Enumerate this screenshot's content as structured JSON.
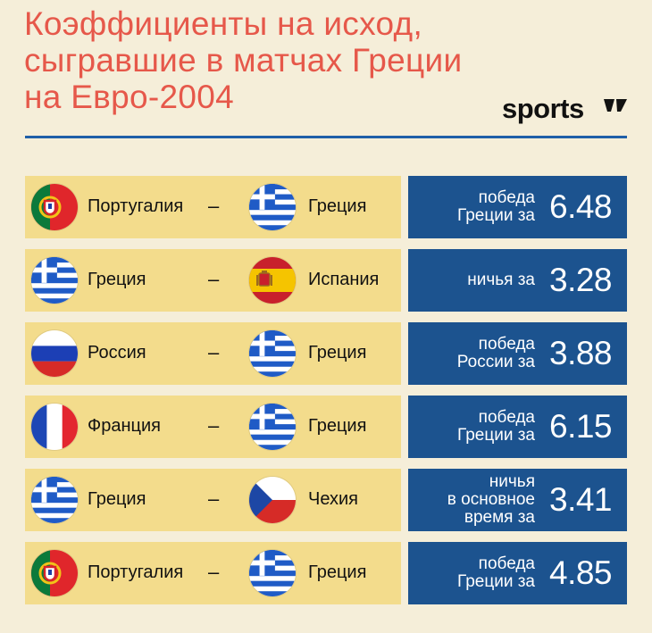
{
  "title": {
    "line1": "Коэффициенты на исход,",
    "line2": "сыгравшие в матчах Греции",
    "line3": "на Евро-2004"
  },
  "logo": {
    "text": "sports"
  },
  "colors": {
    "title": "#e6584a",
    "rule": "#1f5fa8",
    "left_panel": "#f3dc8c",
    "right_panel": "#1c538f",
    "background": "#f5eed9"
  },
  "separator": "–",
  "matches": [
    {
      "team1": "Португалия",
      "flag1": "portugal-flag-icon",
      "team2": "Греция",
      "flag2": "greece-flag-icon",
      "outcome_lines": [
        "победа",
        "Греции за"
      ],
      "odds": "6.48"
    },
    {
      "team1": "Греция",
      "flag1": "greece-flag-icon",
      "team2": "Испания",
      "flag2": "spain-flag-icon",
      "outcome_lines": [
        "ничья за"
      ],
      "odds": "3.28"
    },
    {
      "team1": "Россия",
      "flag1": "russia-flag-icon",
      "team2": "Греция",
      "flag2": "greece-flag-icon",
      "outcome_lines": [
        "победа",
        "России за"
      ],
      "odds": "3.88"
    },
    {
      "team1": "Франция",
      "flag1": "france-flag-icon",
      "team2": "Греция",
      "flag2": "greece-flag-icon",
      "outcome_lines": [
        "победа",
        "Греции за"
      ],
      "odds": "6.15"
    },
    {
      "team1": "Греция",
      "flag1": "greece-flag-icon",
      "team2": "Чехия",
      "flag2": "czech-flag-icon",
      "outcome_lines": [
        "ничья",
        "в основное",
        "время за"
      ],
      "odds": "3.41"
    },
    {
      "team1": "Португалия",
      "flag1": "portugal-flag-icon",
      "team2": "Греция",
      "flag2": "greece-flag-icon",
      "outcome_lines": [
        "победа",
        "Греции за"
      ],
      "odds": "4.85"
    }
  ]
}
